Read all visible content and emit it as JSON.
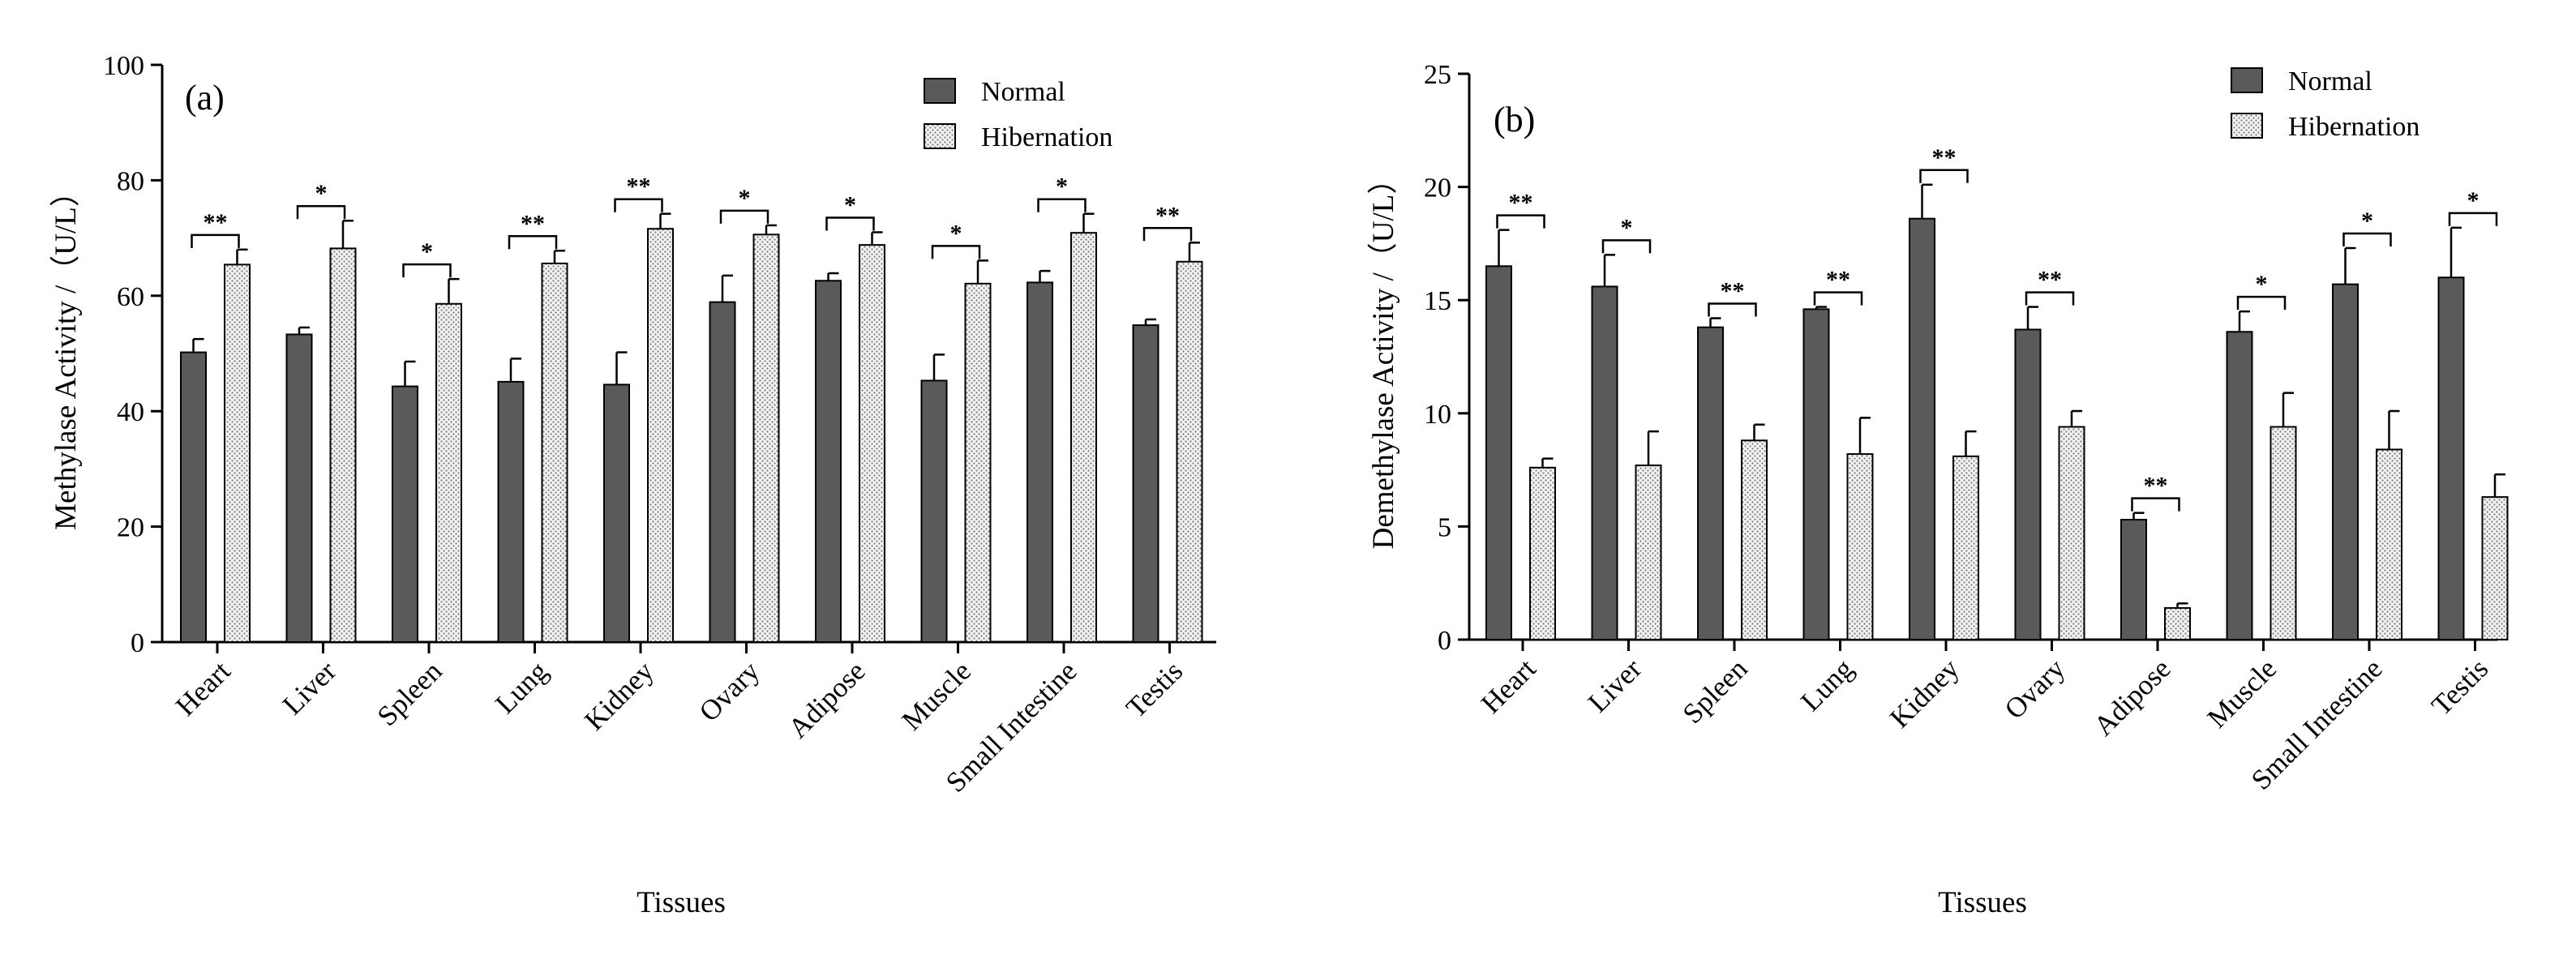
{
  "chart_data": [
    {
      "type": "bar",
      "panel_label": "(a)",
      "title": "",
      "xlabel": "Tissues",
      "ylabel": "Methylase Activity /（U/L）",
      "ylim": [
        0,
        100
      ],
      "yticks": [
        "0",
        "20",
        "40",
        "60",
        "80",
        "100"
      ],
      "legend_position": "top-right",
      "categories": [
        "Heart",
        "Liver",
        "Spleen",
        "Lung",
        "Kidney",
        "Ovary",
        "Adipose",
        "Muscle",
        "Small Intestine",
        "Testis"
      ],
      "series": [
        {
          "name": "Normal",
          "color": "#5a5a5a",
          "pattern": "solid",
          "values": [
            50.2,
            53.3,
            44.3,
            45.1,
            44.6,
            58.9,
            62.6,
            45.3,
            62.3,
            54.9
          ],
          "errors": [
            2.3,
            1.2,
            4.3,
            4.0,
            5.6,
            4.6,
            1.3,
            4.5,
            2.0,
            1.0
          ]
        },
        {
          "name": "Hibernation",
          "color": "#e6e6e6",
          "pattern": "dots",
          "values": [
            65.4,
            68.2,
            58.6,
            65.6,
            71.6,
            70.6,
            68.8,
            62.1,
            70.9,
            65.9
          ],
          "errors": [
            2.6,
            4.8,
            4.3,
            2.2,
            2.6,
            1.6,
            2.2,
            4.0,
            3.3,
            3.3
          ]
        }
      ],
      "significance": [
        "**",
        "*",
        "*",
        "**",
        "**",
        "*",
        "*",
        "*",
        "*",
        "**"
      ]
    },
    {
      "type": "bar",
      "panel_label": "(b)",
      "title": "",
      "xlabel": "Tissues",
      "ylabel": "Demethylase Activity /（U/L）",
      "ylim": [
        0,
        25
      ],
      "yticks": [
        "0",
        "5",
        "10",
        "15",
        "20",
        "25"
      ],
      "legend_position": "top-right",
      "categories": [
        "Heart",
        "Liver",
        "Spleen",
        "Lung",
        "Kidney",
        "Ovary",
        "Adipose",
        "Muscle",
        "Small Intestine",
        "Testis"
      ],
      "series": [
        {
          "name": "Normal",
          "color": "#5a5a5a",
          "pattern": "solid",
          "values": [
            16.5,
            15.6,
            13.8,
            14.6,
            18.6,
            13.7,
            5.3,
            13.6,
            15.7,
            16.0
          ],
          "errors": [
            1.6,
            1.4,
            0.4,
            0.1,
            1.5,
            1.0,
            0.3,
            0.9,
            1.6,
            2.2
          ]
        },
        {
          "name": "Hibernation",
          "color": "#e6e6e6",
          "pattern": "dots",
          "values": [
            7.6,
            7.7,
            8.8,
            8.2,
            8.1,
            9.4,
            1.4,
            9.4,
            8.4,
            6.3
          ],
          "errors": [
            0.4,
            1.5,
            0.7,
            1.6,
            1.1,
            0.7,
            0.2,
            1.5,
            1.7,
            1.0
          ]
        }
      ],
      "significance": [
        "**",
        "*",
        "**",
        "**",
        "**",
        "**",
        "**",
        "*",
        "*",
        "*"
      ]
    }
  ]
}
